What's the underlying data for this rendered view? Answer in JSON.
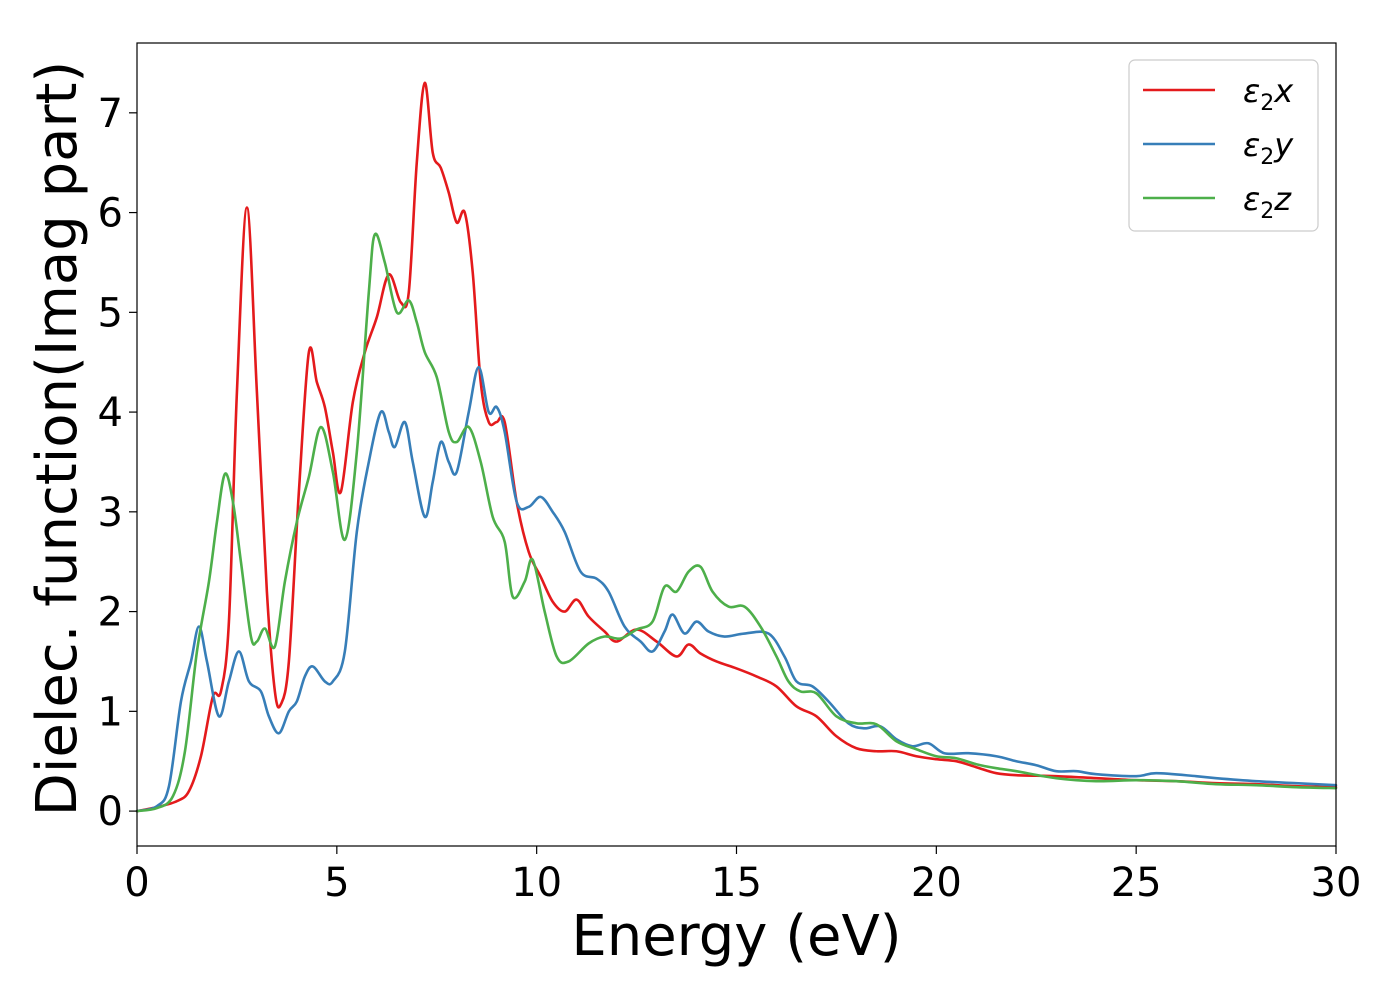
{
  "chart_data": {
    "type": "line",
    "title": "",
    "xlabel": "Energy (eV)",
    "ylabel": "Dielec. function(Imag part)",
    "xlim": [
      0,
      30
    ],
    "ylim": [
      -0.35,
      7.7
    ],
    "xticks": [
      0,
      5,
      10,
      15,
      20,
      25,
      30
    ],
    "yticks": [
      0,
      1,
      2,
      3,
      4,
      5,
      6,
      7
    ],
    "grid": false,
    "legend_position": "top-right",
    "series": [
      {
        "name": "ε₂x",
        "legend_base": "ε",
        "legend_sub": "2",
        "legend_suffix": "x",
        "color": "#e41a1c",
        "points": [
          [
            0,
            0
          ],
          [
            0.5,
            0.04
          ],
          [
            1.0,
            0.1
          ],
          [
            1.3,
            0.2
          ],
          [
            1.6,
            0.55
          ],
          [
            1.9,
            1.15
          ],
          [
            2.1,
            1.2
          ],
          [
            2.3,
            1.9
          ],
          [
            2.5,
            4.2
          ],
          [
            2.75,
            6.05
          ],
          [
            3.0,
            4.2
          ],
          [
            3.25,
            2.2
          ],
          [
            3.45,
            1.2
          ],
          [
            3.6,
            1.07
          ],
          [
            3.8,
            1.5
          ],
          [
            4.05,
            3.2
          ],
          [
            4.3,
            4.6
          ],
          [
            4.5,
            4.3
          ],
          [
            4.7,
            4.05
          ],
          [
            4.9,
            3.6
          ],
          [
            5.1,
            3.2
          ],
          [
            5.4,
            4.1
          ],
          [
            5.7,
            4.6
          ],
          [
            6.0,
            4.95
          ],
          [
            6.3,
            5.38
          ],
          [
            6.6,
            5.1
          ],
          [
            6.8,
            5.2
          ],
          [
            7.0,
            6.5
          ],
          [
            7.2,
            7.3
          ],
          [
            7.4,
            6.6
          ],
          [
            7.6,
            6.45
          ],
          [
            7.8,
            6.2
          ],
          [
            8.0,
            5.9
          ],
          [
            8.2,
            6.0
          ],
          [
            8.4,
            5.4
          ],
          [
            8.6,
            4.3
          ],
          [
            8.8,
            3.9
          ],
          [
            9.0,
            3.9
          ],
          [
            9.2,
            3.9
          ],
          [
            9.5,
            3.1
          ],
          [
            9.8,
            2.6
          ],
          [
            10.1,
            2.35
          ],
          [
            10.4,
            2.1
          ],
          [
            10.7,
            2.0
          ],
          [
            11.0,
            2.12
          ],
          [
            11.3,
            1.95
          ],
          [
            11.7,
            1.8
          ],
          [
            12.0,
            1.7
          ],
          [
            12.5,
            1.82
          ],
          [
            13.0,
            1.7
          ],
          [
            13.5,
            1.55
          ],
          [
            13.8,
            1.67
          ],
          [
            14.1,
            1.58
          ],
          [
            14.5,
            1.5
          ],
          [
            15.0,
            1.43
          ],
          [
            15.5,
            1.35
          ],
          [
            16.0,
            1.25
          ],
          [
            16.5,
            1.05
          ],
          [
            17.0,
            0.95
          ],
          [
            17.5,
            0.75
          ],
          [
            18.0,
            0.63
          ],
          [
            18.5,
            0.6
          ],
          [
            19.0,
            0.6
          ],
          [
            19.5,
            0.55
          ],
          [
            20.0,
            0.52
          ],
          [
            20.5,
            0.5
          ],
          [
            21.0,
            0.44
          ],
          [
            21.5,
            0.38
          ],
          [
            22.0,
            0.36
          ],
          [
            23.0,
            0.35
          ],
          [
            24.0,
            0.33
          ],
          [
            25.0,
            0.31
          ],
          [
            26.0,
            0.3
          ],
          [
            27.0,
            0.28
          ],
          [
            28.0,
            0.27
          ],
          [
            29.0,
            0.25
          ],
          [
            30.0,
            0.24
          ]
        ]
      },
      {
        "name": "ε₂y",
        "legend_base": "ε",
        "legend_sub": "2",
        "legend_suffix": "y",
        "color": "#377eb8",
        "points": [
          [
            0,
            0
          ],
          [
            0.5,
            0.05
          ],
          [
            0.8,
            0.25
          ],
          [
            1.1,
            1.1
          ],
          [
            1.35,
            1.5
          ],
          [
            1.55,
            1.85
          ],
          [
            1.75,
            1.5
          ],
          [
            2.05,
            0.95
          ],
          [
            2.3,
            1.3
          ],
          [
            2.55,
            1.6
          ],
          [
            2.8,
            1.3
          ],
          [
            3.1,
            1.2
          ],
          [
            3.3,
            0.95
          ],
          [
            3.55,
            0.78
          ],
          [
            3.8,
            1.0
          ],
          [
            4.0,
            1.1
          ],
          [
            4.2,
            1.35
          ],
          [
            4.4,
            1.45
          ],
          [
            4.7,
            1.3
          ],
          [
            4.9,
            1.3
          ],
          [
            5.2,
            1.6
          ],
          [
            5.5,
            2.8
          ],
          [
            5.8,
            3.5
          ],
          [
            6.1,
            4.0
          ],
          [
            6.3,
            3.8
          ],
          [
            6.45,
            3.65
          ],
          [
            6.7,
            3.9
          ],
          [
            6.9,
            3.5
          ],
          [
            7.2,
            2.95
          ],
          [
            7.4,
            3.3
          ],
          [
            7.6,
            3.7
          ],
          [
            7.8,
            3.5
          ],
          [
            8.0,
            3.4
          ],
          [
            8.3,
            4.0
          ],
          [
            8.55,
            4.45
          ],
          [
            8.8,
            4.0
          ],
          [
            9.0,
            4.05
          ],
          [
            9.2,
            3.8
          ],
          [
            9.5,
            3.1
          ],
          [
            9.8,
            3.05
          ],
          [
            10.1,
            3.15
          ],
          [
            10.4,
            3.0
          ],
          [
            10.7,
            2.8
          ],
          [
            11.1,
            2.4
          ],
          [
            11.5,
            2.33
          ],
          [
            11.8,
            2.2
          ],
          [
            12.2,
            1.85
          ],
          [
            12.6,
            1.7
          ],
          [
            12.9,
            1.6
          ],
          [
            13.2,
            1.8
          ],
          [
            13.4,
            1.97
          ],
          [
            13.7,
            1.78
          ],
          [
            14.0,
            1.9
          ],
          [
            14.3,
            1.8
          ],
          [
            14.7,
            1.75
          ],
          [
            15.2,
            1.78
          ],
          [
            15.8,
            1.78
          ],
          [
            16.2,
            1.55
          ],
          [
            16.5,
            1.3
          ],
          [
            16.9,
            1.25
          ],
          [
            17.3,
            1.1
          ],
          [
            17.8,
            0.88
          ],
          [
            18.2,
            0.83
          ],
          [
            18.6,
            0.85
          ],
          [
            19.0,
            0.72
          ],
          [
            19.4,
            0.65
          ],
          [
            19.8,
            0.68
          ],
          [
            20.2,
            0.58
          ],
          [
            20.8,
            0.58
          ],
          [
            21.5,
            0.55
          ],
          [
            22.0,
            0.5
          ],
          [
            22.5,
            0.46
          ],
          [
            23.0,
            0.4
          ],
          [
            23.5,
            0.4
          ],
          [
            24.0,
            0.37
          ],
          [
            25.0,
            0.35
          ],
          [
            25.5,
            0.38
          ],
          [
            26.5,
            0.35
          ],
          [
            27.0,
            0.33
          ],
          [
            28.0,
            0.3
          ],
          [
            29.0,
            0.28
          ],
          [
            30.0,
            0.26
          ]
        ]
      },
      {
        "name": "ε₂z",
        "legend_base": "ε",
        "legend_sub": "2",
        "legend_suffix": "z",
        "color": "#4daf4a",
        "points": [
          [
            0,
            0
          ],
          [
            0.5,
            0.03
          ],
          [
            0.9,
            0.15
          ],
          [
            1.2,
            0.6
          ],
          [
            1.5,
            1.6
          ],
          [
            1.8,
            2.3
          ],
          [
            2.0,
            2.9
          ],
          [
            2.2,
            3.38
          ],
          [
            2.4,
            3.1
          ],
          [
            2.6,
            2.5
          ],
          [
            2.85,
            1.75
          ],
          [
            3.0,
            1.7
          ],
          [
            3.2,
            1.83
          ],
          [
            3.45,
            1.65
          ],
          [
            3.7,
            2.3
          ],
          [
            4.0,
            2.9
          ],
          [
            4.3,
            3.35
          ],
          [
            4.6,
            3.85
          ],
          [
            4.9,
            3.4
          ],
          [
            5.2,
            2.72
          ],
          [
            5.5,
            3.6
          ],
          [
            5.8,
            5.2
          ],
          [
            5.95,
            5.78
          ],
          [
            6.2,
            5.5
          ],
          [
            6.5,
            5.0
          ],
          [
            6.8,
            5.12
          ],
          [
            7.0,
            4.9
          ],
          [
            7.2,
            4.6
          ],
          [
            7.5,
            4.35
          ],
          [
            7.8,
            3.8
          ],
          [
            8.0,
            3.7
          ],
          [
            8.3,
            3.85
          ],
          [
            8.6,
            3.5
          ],
          [
            8.9,
            2.95
          ],
          [
            9.2,
            2.7
          ],
          [
            9.4,
            2.15
          ],
          [
            9.7,
            2.3
          ],
          [
            9.9,
            2.52
          ],
          [
            10.2,
            2.0
          ],
          [
            10.5,
            1.55
          ],
          [
            10.8,
            1.5
          ],
          [
            11.3,
            1.68
          ],
          [
            11.7,
            1.75
          ],
          [
            12.1,
            1.73
          ],
          [
            12.5,
            1.82
          ],
          [
            12.9,
            1.9
          ],
          [
            13.2,
            2.25
          ],
          [
            13.5,
            2.2
          ],
          [
            13.8,
            2.4
          ],
          [
            14.1,
            2.45
          ],
          [
            14.4,
            2.2
          ],
          [
            14.8,
            2.05
          ],
          [
            15.2,
            2.05
          ],
          [
            15.6,
            1.85
          ],
          [
            16.0,
            1.55
          ],
          [
            16.3,
            1.3
          ],
          [
            16.6,
            1.2
          ],
          [
            17.0,
            1.18
          ],
          [
            17.5,
            0.95
          ],
          [
            18.0,
            0.88
          ],
          [
            18.5,
            0.87
          ],
          [
            19.0,
            0.7
          ],
          [
            19.5,
            0.62
          ],
          [
            20.0,
            0.55
          ],
          [
            20.5,
            0.53
          ],
          [
            21.0,
            0.47
          ],
          [
            21.5,
            0.43
          ],
          [
            22.0,
            0.4
          ],
          [
            23.0,
            0.33
          ],
          [
            24.0,
            0.3
          ],
          [
            25.0,
            0.31
          ],
          [
            26.0,
            0.3
          ],
          [
            27.0,
            0.27
          ],
          [
            28.0,
            0.26
          ],
          [
            29.0,
            0.24
          ],
          [
            30.0,
            0.23
          ]
        ]
      }
    ]
  }
}
